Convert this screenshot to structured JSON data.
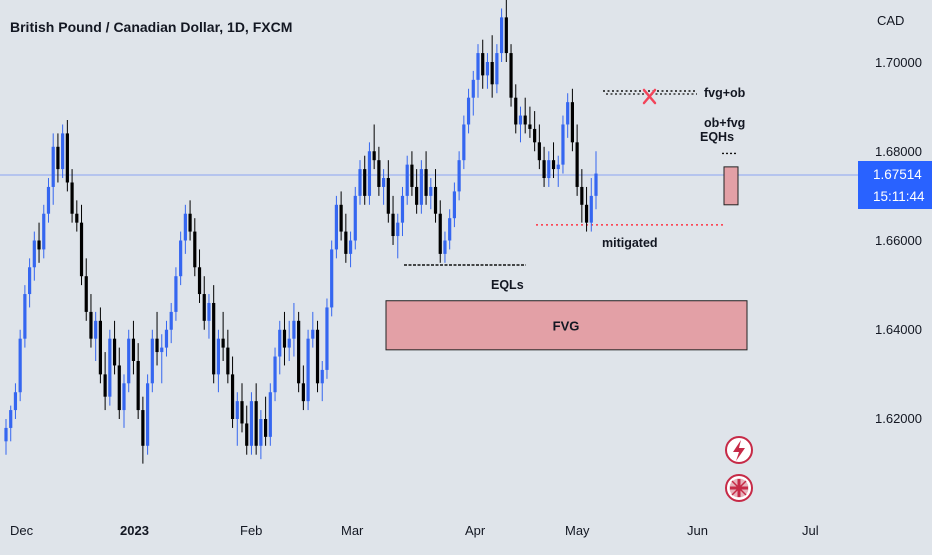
{
  "header": {
    "title": "British Pound / Canadian Dollar, 1D, FXCM"
  },
  "price_axis": {
    "currency": "CAD",
    "ticks": [
      "1.70000",
      "1.68000",
      "1.66000",
      "1.64000",
      "1.62000"
    ],
    "current_price": "1.67514",
    "countdown": "15:11:44"
  },
  "time_axis": {
    "labels": [
      "Dec",
      "2023",
      "Feb",
      "Mar",
      "Apr",
      "May",
      "Jun",
      "Jul"
    ]
  },
  "annotations": {
    "fvg_ob": "fvg+ob",
    "ob_fvg": "ob+fvg",
    "eqhs": "EQHs",
    "mitigated": "mitigated",
    "eqls": "EQLs",
    "fvg_zone": "FVG"
  },
  "icons": [
    "lightning-icon",
    "uk-flag-icon"
  ],
  "colors": {
    "bull": "#3566f0",
    "bear": "#000000",
    "fvg_fill": "#e3a0a6",
    "fvg_border": "#222222",
    "price_line": "#2962ff",
    "marker_x": "#f2445a",
    "mitigated_line": "#ff3344"
  },
  "chart_data": {
    "type": "candlestick",
    "title": "British Pound / Canadian Dollar, 1D, FXCM",
    "ylabel": "CAD",
    "ylim": [
      1.608,
      1.713
    ],
    "xticks": [
      "Dec",
      "2023",
      "Feb",
      "Mar",
      "Apr",
      "May",
      "Jun",
      "Jul"
    ],
    "current_price": 1.67514,
    "zones": [
      {
        "label": "FVG",
        "from": 1.6355,
        "to": 1.6465
      }
    ],
    "levels": [
      {
        "label": "fvg+ob",
        "price": 1.6935
      },
      {
        "label": "EQHs",
        "price": 1.6795
      },
      {
        "label": "mitigated",
        "price": 1.6635
      },
      {
        "label": "EQLs",
        "price": 1.6545
      }
    ],
    "candles": [
      [
        1.615,
        1.62,
        1.612,
        1.618
      ],
      [
        1.618,
        1.623,
        1.615,
        1.622
      ],
      [
        1.622,
        1.628,
        1.62,
        1.626
      ],
      [
        1.626,
        1.64,
        1.624,
        1.638
      ],
      [
        1.638,
        1.65,
        1.636,
        1.648
      ],
      [
        1.648,
        1.656,
        1.645,
        1.654
      ],
      [
        1.654,
        1.662,
        1.651,
        1.66
      ],
      [
        1.66,
        1.664,
        1.655,
        1.658
      ],
      [
        1.658,
        1.668,
        1.656,
        1.666
      ],
      [
        1.666,
        1.674,
        1.664,
        1.672
      ],
      [
        1.672,
        1.684,
        1.668,
        1.681
      ],
      [
        1.681,
        1.684,
        1.673,
        1.676
      ],
      [
        1.676,
        1.686,
        1.674,
        1.684
      ],
      [
        1.684,
        1.687,
        1.671,
        1.673
      ],
      [
        1.673,
        1.676,
        1.664,
        1.666
      ],
      [
        1.666,
        1.669,
        1.662,
        1.664
      ],
      [
        1.664,
        1.668,
        1.65,
        1.652
      ],
      [
        1.652,
        1.656,
        1.642,
        1.644
      ],
      [
        1.644,
        1.648,
        1.636,
        1.638
      ],
      [
        1.638,
        1.644,
        1.633,
        1.642
      ],
      [
        1.642,
        1.645,
        1.628,
        1.63
      ],
      [
        1.63,
        1.635,
        1.622,
        1.625
      ],
      [
        1.625,
        1.64,
        1.623,
        1.638
      ],
      [
        1.638,
        1.642,
        1.63,
        1.632
      ],
      [
        1.632,
        1.636,
        1.62,
        1.622
      ],
      [
        1.622,
        1.63,
        1.618,
        1.628
      ],
      [
        1.628,
        1.64,
        1.626,
        1.638
      ],
      [
        1.638,
        1.642,
        1.63,
        1.633
      ],
      [
        1.633,
        1.637,
        1.62,
        1.622
      ],
      [
        1.622,
        1.625,
        1.61,
        1.614
      ],
      [
        1.614,
        1.63,
        1.612,
        1.628
      ],
      [
        1.628,
        1.64,
        1.626,
        1.638
      ],
      [
        1.638,
        1.644,
        1.632,
        1.635
      ],
      [
        1.635,
        1.639,
        1.628,
        1.636
      ],
      [
        1.636,
        1.642,
        1.634,
        1.64
      ],
      [
        1.64,
        1.646,
        1.637,
        1.644
      ],
      [
        1.644,
        1.654,
        1.642,
        1.652
      ],
      [
        1.652,
        1.662,
        1.65,
        1.66
      ],
      [
        1.66,
        1.668,
        1.657,
        1.666
      ],
      [
        1.666,
        1.669,
        1.66,
        1.662
      ],
      [
        1.662,
        1.665,
        1.652,
        1.654
      ],
      [
        1.654,
        1.658,
        1.646,
        1.648
      ],
      [
        1.648,
        1.652,
        1.64,
        1.642
      ],
      [
        1.642,
        1.648,
        1.638,
        1.646
      ],
      [
        1.646,
        1.65,
        1.628,
        1.63
      ],
      [
        1.63,
        1.64,
        1.626,
        1.638
      ],
      [
        1.638,
        1.644,
        1.633,
        1.636
      ],
      [
        1.636,
        1.64,
        1.628,
        1.63
      ],
      [
        1.63,
        1.634,
        1.618,
        1.62
      ],
      [
        1.62,
        1.626,
        1.614,
        1.624
      ],
      [
        1.624,
        1.628,
        1.617,
        1.619
      ],
      [
        1.619,
        1.623,
        1.612,
        1.614
      ],
      [
        1.614,
        1.626,
        1.612,
        1.624
      ],
      [
        1.624,
        1.628,
        1.612,
        1.614
      ],
      [
        1.614,
        1.622,
        1.611,
        1.62
      ],
      [
        1.62,
        1.625,
        1.614,
        1.616
      ],
      [
        1.616,
        1.628,
        1.614,
        1.626
      ],
      [
        1.626,
        1.636,
        1.624,
        1.634
      ],
      [
        1.634,
        1.642,
        1.63,
        1.64
      ],
      [
        1.64,
        1.644,
        1.632,
        1.636
      ],
      [
        1.636,
        1.642,
        1.633,
        1.638
      ],
      [
        1.638,
        1.646,
        1.634,
        1.642
      ],
      [
        1.642,
        1.644,
        1.626,
        1.628
      ],
      [
        1.628,
        1.632,
        1.622,
        1.624
      ],
      [
        1.624,
        1.64,
        1.622,
        1.638
      ],
      [
        1.638,
        1.644,
        1.636,
        1.64
      ],
      [
        1.64,
        1.642,
        1.626,
        1.628
      ],
      [
        1.628,
        1.633,
        1.624,
        1.631
      ],
      [
        1.631,
        1.647,
        1.629,
        1.645
      ],
      [
        1.645,
        1.66,
        1.643,
        1.658
      ],
      [
        1.658,
        1.67,
        1.656,
        1.668
      ],
      [
        1.668,
        1.671,
        1.66,
        1.662
      ],
      [
        1.662,
        1.666,
        1.655,
        1.657
      ],
      [
        1.657,
        1.662,
        1.654,
        1.66
      ],
      [
        1.66,
        1.672,
        1.658,
        1.67
      ],
      [
        1.67,
        1.678,
        1.668,
        1.676
      ],
      [
        1.676,
        1.679,
        1.668,
        1.67
      ],
      [
        1.67,
        1.682,
        1.668,
        1.68
      ],
      [
        1.68,
        1.686,
        1.676,
        1.678
      ],
      [
        1.678,
        1.681,
        1.67,
        1.672
      ],
      [
        1.672,
        1.676,
        1.668,
        1.674
      ],
      [
        1.674,
        1.678,
        1.664,
        1.666
      ],
      [
        1.666,
        1.67,
        1.659,
        1.661
      ],
      [
        1.661,
        1.666,
        1.656,
        1.664
      ],
      [
        1.664,
        1.672,
        1.661,
        1.67
      ],
      [
        1.67,
        1.679,
        1.668,
        1.677
      ],
      [
        1.677,
        1.68,
        1.67,
        1.672
      ],
      [
        1.672,
        1.676,
        1.666,
        1.668
      ],
      [
        1.668,
        1.678,
        1.666,
        1.676
      ],
      [
        1.676,
        1.68,
        1.668,
        1.67
      ],
      [
        1.67,
        1.674,
        1.667,
        1.672
      ],
      [
        1.672,
        1.676,
        1.664,
        1.666
      ],
      [
        1.666,
        1.669,
        1.655,
        1.657
      ],
      [
        1.657,
        1.662,
        1.655,
        1.66
      ],
      [
        1.66,
        1.667,
        1.658,
        1.665
      ],
      [
        1.665,
        1.673,
        1.663,
        1.671
      ],
      [
        1.671,
        1.68,
        1.669,
        1.678
      ],
      [
        1.678,
        1.688,
        1.676,
        1.686
      ],
      [
        1.686,
        1.694,
        1.684,
        1.692
      ],
      [
        1.692,
        1.698,
        1.688,
        1.696
      ],
      [
        1.696,
        1.704,
        1.692,
        1.702
      ],
      [
        1.702,
        1.705,
        1.694,
        1.697
      ],
      [
        1.697,
        1.702,
        1.694,
        1.7
      ],
      [
        1.7,
        1.706,
        1.692,
        1.695
      ],
      [
        1.695,
        1.704,
        1.693,
        1.702
      ],
      [
        1.702,
        1.712,
        1.7,
        1.71
      ],
      [
        1.71,
        1.714,
        1.7,
        1.702
      ],
      [
        1.702,
        1.704,
        1.69,
        1.692
      ],
      [
        1.692,
        1.695,
        1.684,
        1.686
      ],
      [
        1.686,
        1.69,
        1.682,
        1.688
      ],
      [
        1.688,
        1.692,
        1.684,
        1.686
      ],
      [
        1.686,
        1.69,
        1.683,
        1.685
      ],
      [
        1.685,
        1.689,
        1.68,
        1.682
      ],
      [
        1.682,
        1.686,
        1.676,
        1.678
      ],
      [
        1.678,
        1.681,
        1.672,
        1.674
      ],
      [
        1.674,
        1.68,
        1.672,
        1.678
      ],
      [
        1.678,
        1.682,
        1.674,
        1.676
      ],
      [
        1.676,
        1.679,
        1.672,
        1.677
      ],
      [
        1.677,
        1.688,
        1.675,
        1.686
      ],
      [
        1.686,
        1.693,
        1.683,
        1.691
      ],
      [
        1.691,
        1.694,
        1.68,
        1.682
      ],
      [
        1.682,
        1.686,
        1.67,
        1.672
      ],
      [
        1.672,
        1.676,
        1.664,
        1.668
      ],
      [
        1.668,
        1.672,
        1.662,
        1.664
      ],
      [
        1.664,
        1.674,
        1.662,
        1.67
      ],
      [
        1.67,
        1.68,
        1.667,
        1.675
      ]
    ]
  }
}
